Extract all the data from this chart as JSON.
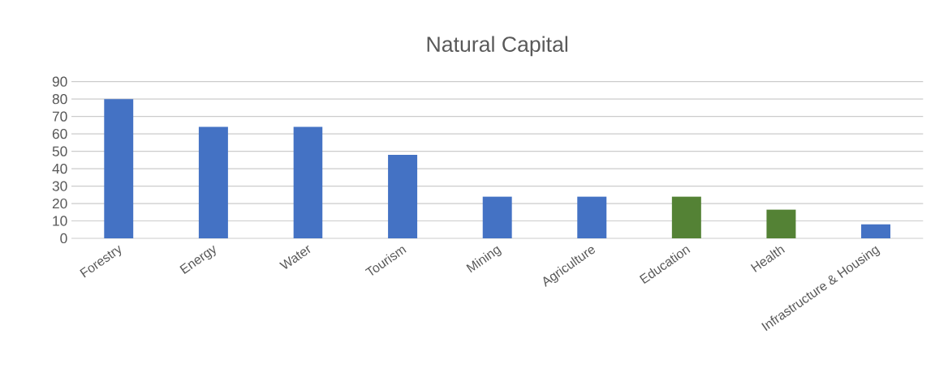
{
  "chart_data": {
    "type": "bar",
    "title": "Natural Capital",
    "categories": [
      "Forestry",
      "Energy",
      "Water",
      "Tourism",
      "Mining",
      "Agriculture",
      "Education",
      "Health",
      "Infrastructure & Housing"
    ],
    "values": [
      80,
      64,
      64,
      48,
      24,
      24,
      24,
      16.5,
      8
    ],
    "colors": [
      "#4472c4",
      "#4472c4",
      "#4472c4",
      "#4472c4",
      "#4472c4",
      "#4472c4",
      "#548235",
      "#548235",
      "#4472c4"
    ],
    "ylim": [
      0,
      90
    ],
    "yticks": [
      0,
      10,
      20,
      30,
      40,
      50,
      60,
      70,
      80,
      90
    ],
    "grid": "y"
  }
}
